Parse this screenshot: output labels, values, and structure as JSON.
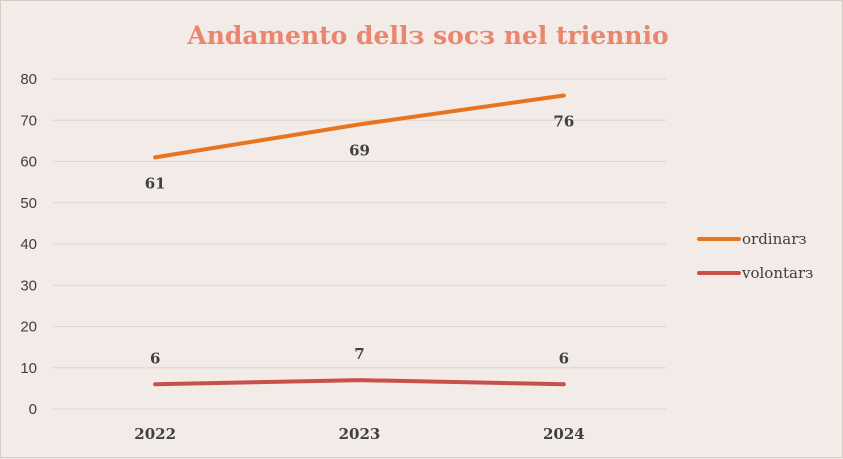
{
  "chart_data": {
    "type": "line",
    "title": "Andamento dellз socз nel triennio",
    "categories": [
      "2022",
      "2023",
      "2024"
    ],
    "ylim": [
      0,
      80
    ],
    "yticks": [
      0,
      10,
      20,
      30,
      40,
      50,
      60,
      70,
      80
    ],
    "grid": true,
    "legend_position": "right",
    "series": [
      {
        "name": "ordinarз",
        "values": [
          61,
          69,
          76
        ],
        "color": "#e8741f"
      },
      {
        "name": "volontarз",
        "values": [
          6,
          7,
          6
        ],
        "color": "#c9504a"
      }
    ]
  }
}
